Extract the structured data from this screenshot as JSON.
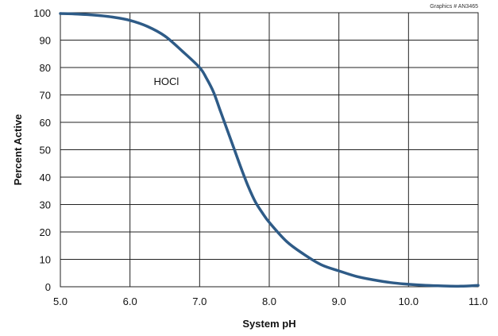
{
  "credit": "Graphics # AN3465",
  "chart_data": {
    "type": "line",
    "title": "",
    "xlabel": "System pH",
    "ylabel": "Percent Active",
    "xlim": [
      5.0,
      11.0
    ],
    "ylim": [
      0,
      100
    ],
    "x_ticks": [
      "5.0",
      "6.0",
      "7.0",
      "8.0",
      "9.0",
      "10.0",
      "11.0"
    ],
    "y_ticks": [
      "0",
      "10",
      "20",
      "30",
      "40",
      "50",
      "60",
      "70",
      "80",
      "90",
      "100"
    ],
    "grid": true,
    "legend": "none",
    "annotations": [
      {
        "text": "HOCl",
        "x": 6.5,
        "y": 76
      }
    ],
    "series": [
      {
        "color": "#2e5b87",
        "x": [
          5.0,
          5.25,
          5.5,
          5.75,
          6.0,
          6.25,
          6.5,
          6.75,
          7.0,
          7.1,
          7.2,
          7.3,
          7.4,
          7.5,
          7.6,
          7.7,
          7.8,
          7.9,
          8.0,
          8.25,
          8.5,
          8.75,
          9.0,
          9.25,
          9.5,
          9.75,
          10.0,
          10.25,
          10.5,
          10.75,
          11.0
        ],
        "y": [
          99.7,
          99.5,
          99.1,
          98.4,
          97.2,
          95.0,
          91.5,
          86.0,
          80.0,
          76.0,
          71.0,
          64.0,
          57.0,
          50.0,
          43.0,
          36.5,
          31.0,
          27.0,
          23.5,
          16.5,
          11.8,
          8.0,
          5.8,
          3.8,
          2.5,
          1.5,
          0.9,
          0.5,
          0.3,
          0.2,
          0.5
        ]
      }
    ]
  }
}
